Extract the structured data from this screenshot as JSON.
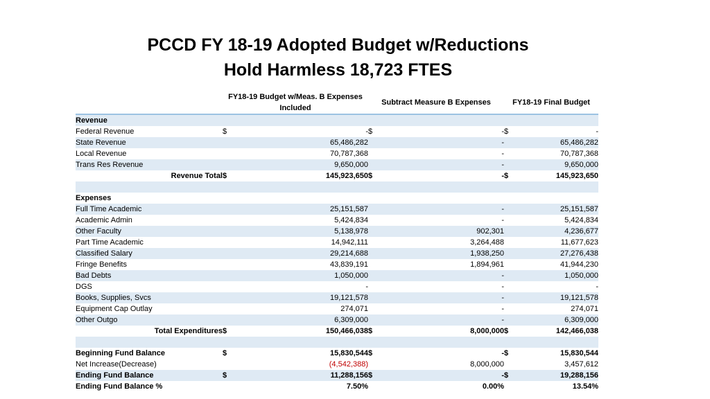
{
  "title": {
    "line1": "PCCD FY 18-19 Adopted Budget w/Reductions",
    "line2": "Hold Harmless 18,723 FTES"
  },
  "columns": {
    "col1": "FY18-19 Budget w/Meas. B Expenses Included",
    "col2": "Subtract Measure B Expenses",
    "col3": "FY18-19 Final Budget"
  },
  "revenue": {
    "heading": "Revenue",
    "rows": [
      {
        "label": "Federal Revenue",
        "d1": "$",
        "v1": "-",
        "d2": "$",
        "v2": "-",
        "d3": "$",
        "v3": "-"
      },
      {
        "label": "State Revenue",
        "d1": "",
        "v1": "65,486,282",
        "d2": "",
        "v2": "-",
        "d3": "",
        "v3": "65,486,282"
      },
      {
        "label": "Local Revenue",
        "d1": "",
        "v1": "70,787,368",
        "d2": "",
        "v2": "-",
        "d3": "",
        "v3": "70,787,368"
      },
      {
        "label": "Trans Res Revenue",
        "d1": "",
        "v1": "9,650,000",
        "d2": "",
        "v2": "-",
        "d3": "",
        "v3": "9,650,000"
      }
    ],
    "total": {
      "label": "Revenue Total",
      "d1": "$",
      "v1": "145,923,650",
      "d2": "$",
      "v2": "-",
      "d3": "$",
      "v3": "145,923,650"
    }
  },
  "expenses": {
    "heading": "Expenses",
    "rows": [
      {
        "label": "Full Time Academic",
        "v1": "25,151,587",
        "v2": "-",
        "v3": "25,151,587"
      },
      {
        "label": "Academic Admin",
        "v1": "5,424,834",
        "v2": "-",
        "v3": "5,424,834"
      },
      {
        "label": "Other Faculty",
        "v1": "5,138,978",
        "v2": "902,301",
        "v3": "4,236,677"
      },
      {
        "label": "Part Time Academic",
        "v1": "14,942,111",
        "v2": "3,264,488",
        "v3": "11,677,623"
      },
      {
        "label": "Classified Salary",
        "v1": "29,214,688",
        "v2": "1,938,250",
        "v3": "27,276,438"
      },
      {
        "label": "Fringe Benefits",
        "v1": "43,839,191",
        "v2": "1,894,961",
        "v3": "41,944,230"
      },
      {
        "label": "Bad Debts",
        "v1": "1,050,000",
        "v2": "-",
        "v3": "1,050,000"
      },
      {
        "label": "DGS",
        "v1": "-",
        "v2": "-",
        "v3": "-"
      },
      {
        "label": "Books, Supplies, Svcs",
        "v1": "19,121,578",
        "v2": "-",
        "v3": "19,121,578"
      },
      {
        "label": "Equipment Cap Outlay",
        "v1": "274,071",
        "v2": "-",
        "v3": "274,071"
      },
      {
        "label": "Other Outgo",
        "v1": "6,309,000",
        "v2": "-",
        "v3": "6,309,000"
      }
    ],
    "total": {
      "label": "Total Expenditures",
      "d1": "$",
      "v1": "150,466,038",
      "d2": "$",
      "v2": "8,000,000",
      "d3": "$",
      "v3": "142,466,038"
    }
  },
  "fund": {
    "beginning": {
      "label": "Beginning Fund Balance",
      "d1": "$",
      "v1": "15,830,544",
      "d2": "$",
      "v2": "-",
      "d3": "$",
      "v3": "15,830,544"
    },
    "net": {
      "label": "Net Increase(Decrease)",
      "v1": "(4,542,388)",
      "v2": "8,000,000",
      "v3": "3,457,612"
    },
    "ending": {
      "label": "Ending Fund Balance",
      "d1": "$",
      "v1": "11,288,156",
      "d2": "$",
      "v2": "-",
      "d3": "$",
      "v3": "19,288,156"
    },
    "ending_pct": {
      "label": "Ending Fund Balance %",
      "v1": "7.50%",
      "v2": "0.00%",
      "v3": "13.54%"
    }
  },
  "colors": {
    "row_shade": "#dfeaf4",
    "header_rule": "#9cc3e2",
    "negative": "#c00000"
  }
}
